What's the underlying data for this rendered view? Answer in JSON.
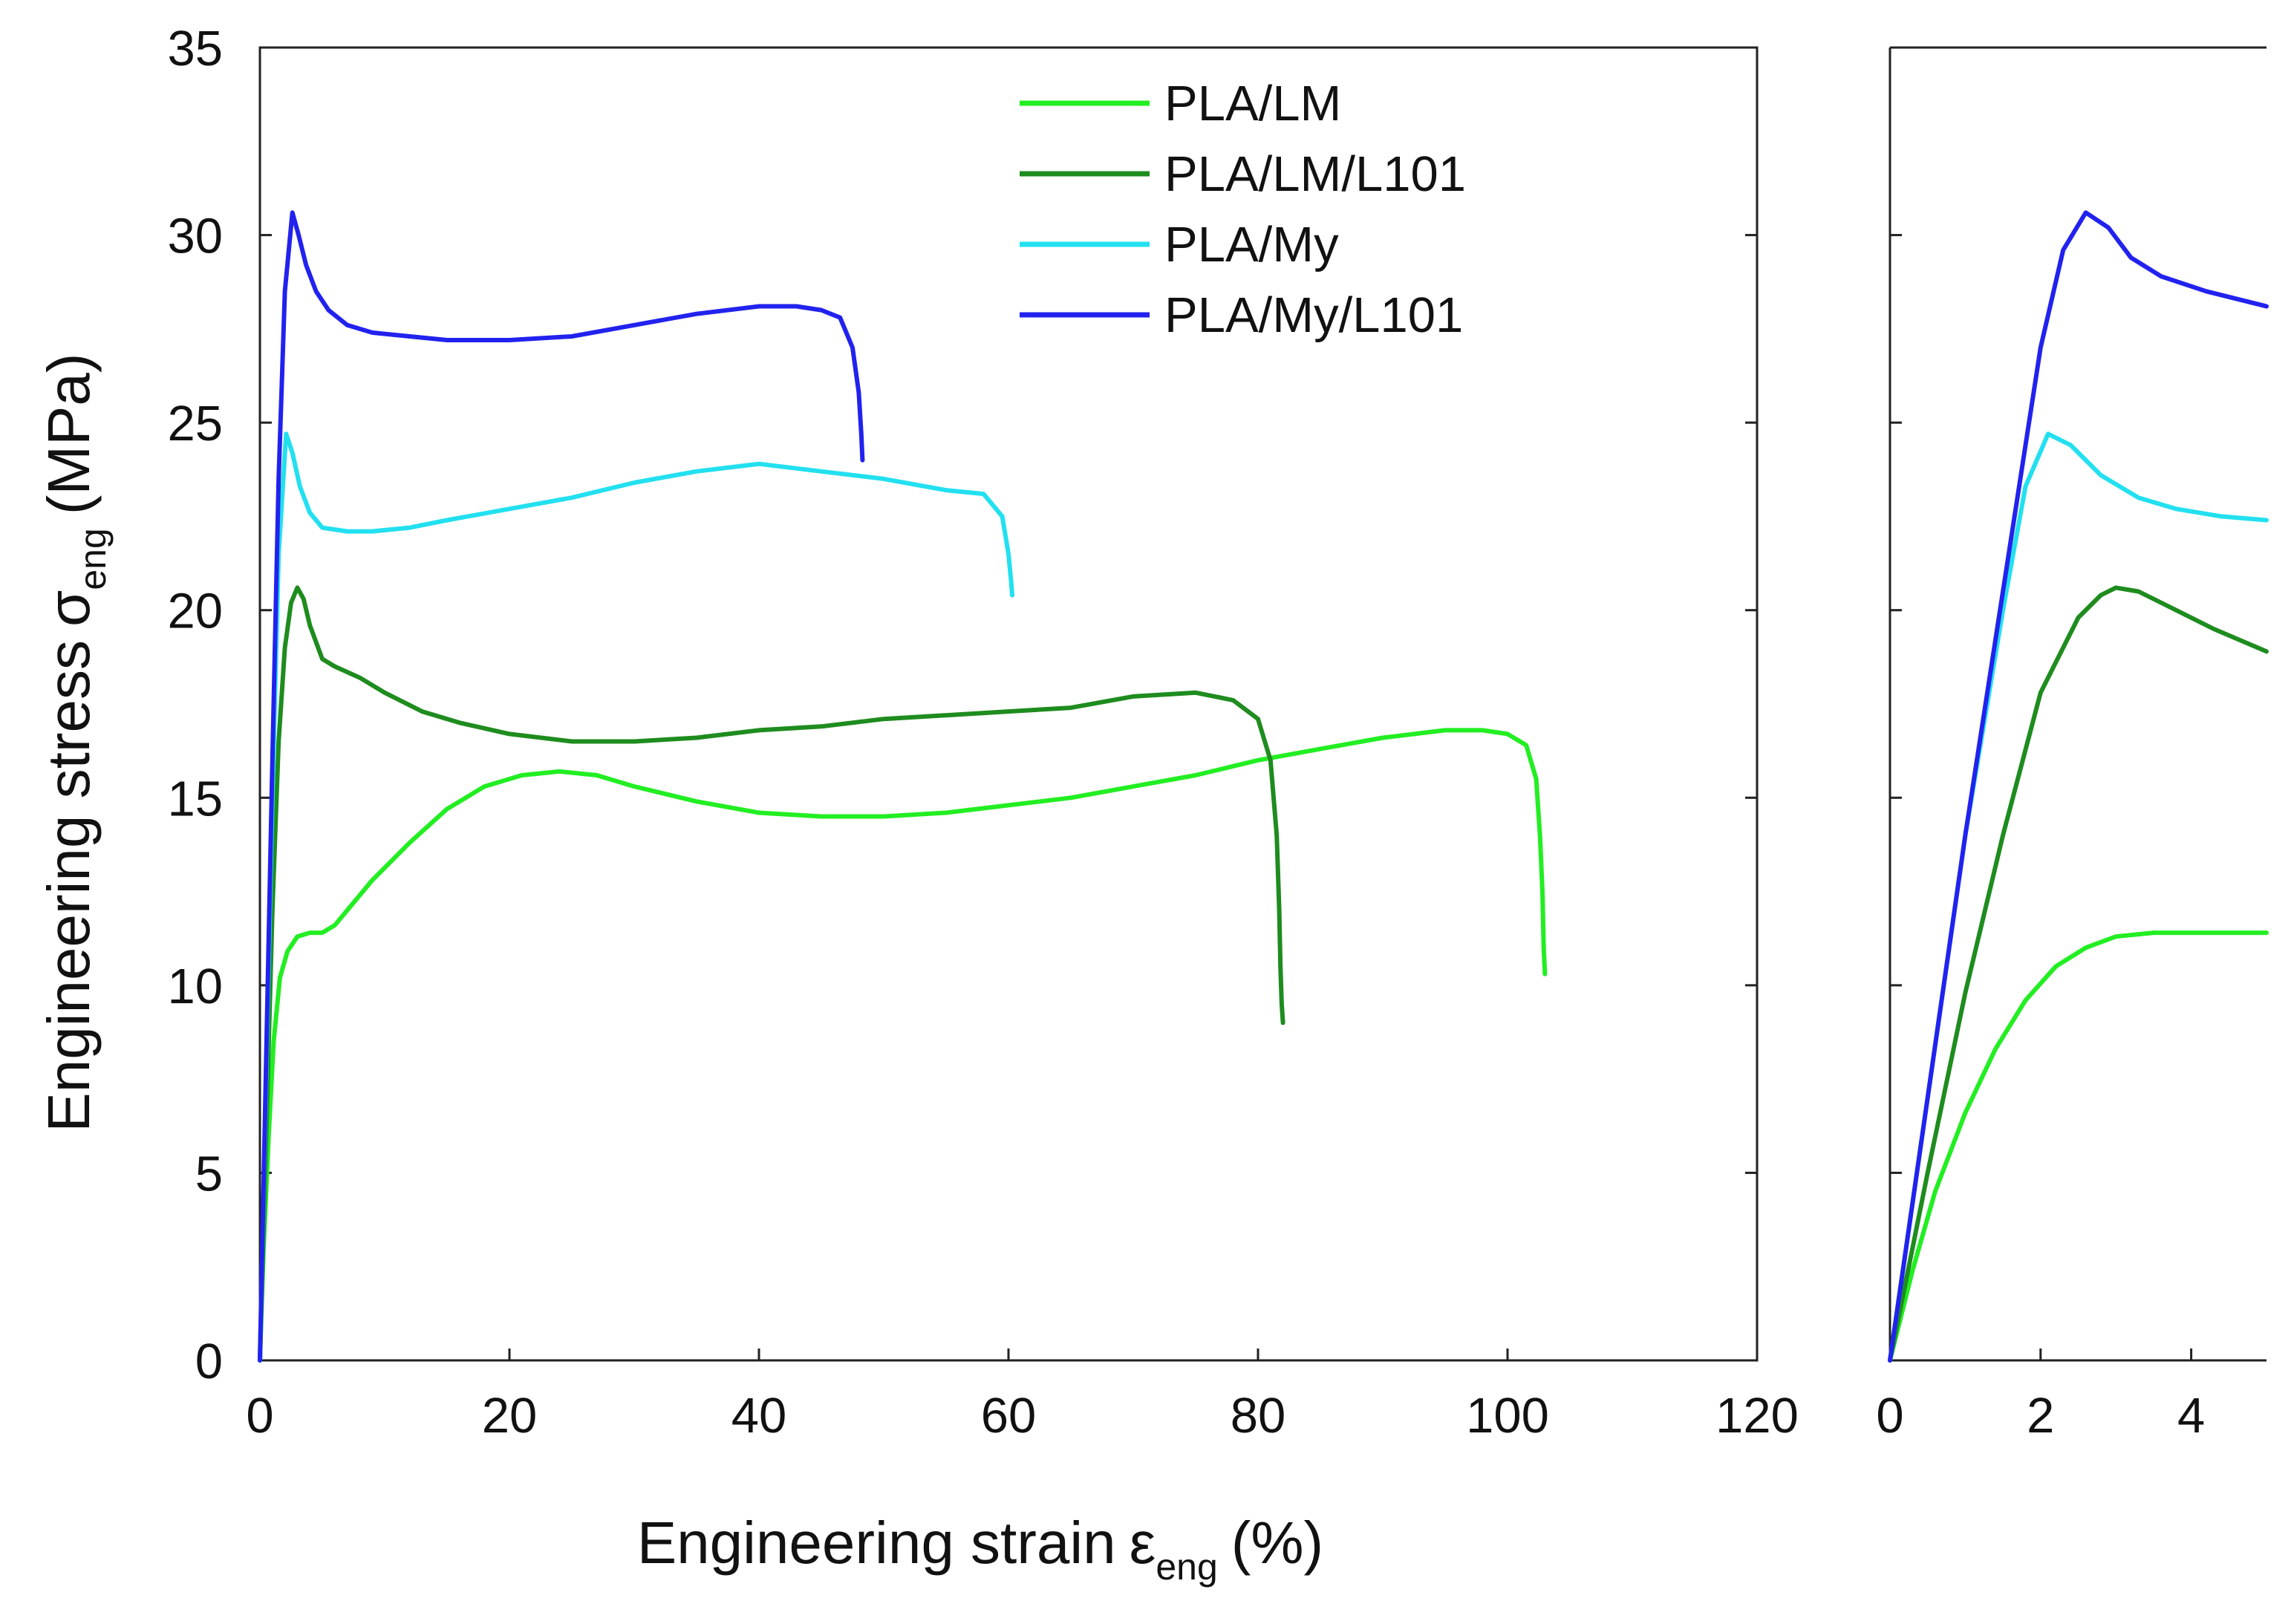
{
  "chart_data": [
    {
      "type": "line",
      "panel": "main",
      "title": "",
      "xlabel": "Engineering strain",
      "xlabel_symbol": "ε",
      "xlabel_sub": "eng",
      "xlabel_unit": "(%)",
      "ylabel": "Engineering stress",
      "ylabel_symbol": "σ",
      "ylabel_sub": "eng",
      "ylabel_unit": "(MPa)",
      "xlim": [
        0,
        120
      ],
      "ylim": [
        0,
        35
      ],
      "xticks": [
        0,
        20,
        40,
        60,
        80,
        100,
        120
      ],
      "yticks": [
        0,
        5,
        10,
        15,
        20,
        25,
        30,
        35
      ],
      "grid": false,
      "legend_position": "top-center",
      "series": [
        {
          "name": "PLA/LM",
          "color": "#22ee22",
          "x": [
            0,
            0.3,
            0.7,
            1.1,
            1.6,
            2.2,
            3.0,
            4.0,
            5.0,
            6.0,
            7.0,
            9.0,
            12.0,
            15.0,
            18.0,
            21.0,
            24.0,
            27.0,
            30.0,
            35.0,
            40.0,
            45.0,
            50.0,
            55.0,
            60.0,
            65.0,
            70.0,
            75.0,
            80.0,
            85.0,
            90.0,
            95.0,
            98.0,
            100.0,
            101.5,
            102.3,
            102.6,
            102.8,
            102.9,
            103.0
          ],
          "y": [
            0,
            3.0,
            6.0,
            8.5,
            10.2,
            10.9,
            11.3,
            11.4,
            11.4,
            11.6,
            12.0,
            12.8,
            13.8,
            14.7,
            15.3,
            15.6,
            15.7,
            15.6,
            15.3,
            14.9,
            14.6,
            14.5,
            14.5,
            14.6,
            14.8,
            15.0,
            15.3,
            15.6,
            16.0,
            16.3,
            16.6,
            16.8,
            16.8,
            16.7,
            16.4,
            15.5,
            14.0,
            12.5,
            11.0,
            10.3
          ]
        },
        {
          "name": "PLA/LM/L101",
          "color": "#1e8c1e",
          "x": [
            0,
            0.5,
            1.0,
            1.5,
            2.0,
            2.5,
            3.0,
            3.5,
            4.0,
            5.0,
            6.0,
            8.0,
            10.0,
            13.0,
            16.0,
            20.0,
            25.0,
            30.0,
            35.0,
            40.0,
            45.0,
            50.0,
            55.0,
            60.0,
            65.0,
            70.0,
            75.0,
            78.0,
            80.0,
            81.0,
            81.5,
            81.7,
            81.8,
            81.9,
            82.0
          ],
          "y": [
            0,
            6.0,
            12.0,
            16.5,
            19.0,
            20.2,
            20.6,
            20.3,
            19.6,
            18.7,
            18.5,
            18.2,
            17.8,
            17.3,
            17.0,
            16.7,
            16.5,
            16.5,
            16.6,
            16.8,
            16.9,
            17.1,
            17.2,
            17.3,
            17.4,
            17.7,
            17.8,
            17.6,
            17.1,
            16.0,
            14.0,
            12.0,
            10.5,
            9.5,
            9.0
          ]
        },
        {
          "name": "PLA/My",
          "color": "#22e0f0",
          "x": [
            0,
            0.5,
            1.0,
            1.5,
            2.1,
            2.6,
            3.2,
            4.0,
            5.0,
            7.0,
            9.0,
            12.0,
            15.0,
            20.0,
            25.0,
            30.0,
            35.0,
            40.0,
            45.0,
            50.0,
            55.0,
            58.0,
            59.5,
            60.0,
            60.2,
            60.3
          ],
          "y": [
            0,
            7.5,
            15.0,
            21.5,
            24.7,
            24.2,
            23.3,
            22.6,
            22.2,
            22.1,
            22.1,
            22.2,
            22.4,
            22.7,
            23.0,
            23.4,
            23.7,
            23.9,
            23.7,
            23.5,
            23.2,
            23.1,
            22.5,
            21.5,
            20.8,
            20.4
          ]
        },
        {
          "name": "PLA/My/L101",
          "color": "#2222ee",
          "x": [
            0,
            0.5,
            1.0,
            1.5,
            2.0,
            2.6,
            3.1,
            3.7,
            4.5,
            5.5,
            7.0,
            9.0,
            12.0,
            15.0,
            20.0,
            25.0,
            30.0,
            35.0,
            40.0,
            43.0,
            45.0,
            46.5,
            47.5,
            48.0,
            48.2,
            48.3
          ],
          "y": [
            0,
            8.0,
            16.0,
            23.5,
            28.5,
            30.6,
            30.0,
            29.2,
            28.5,
            28.0,
            27.6,
            27.4,
            27.3,
            27.2,
            27.2,
            27.3,
            27.6,
            27.9,
            28.1,
            28.1,
            28.0,
            27.8,
            27.0,
            25.8,
            24.7,
            24.0
          ]
        }
      ]
    },
    {
      "type": "line",
      "panel": "inset-zoom",
      "title": "",
      "xlim": [
        0,
        5
      ],
      "ylim": [
        0,
        35
      ],
      "xticks": [
        0,
        2,
        4
      ],
      "yticks": [
        0,
        5,
        10,
        15,
        20,
        25,
        30,
        35
      ],
      "grid": false,
      "series": [
        {
          "name": "PLA/LM",
          "color": "#22ee22",
          "x": [
            0,
            0.3,
            0.6,
            1.0,
            1.4,
            1.8,
            2.2,
            2.6,
            3.0,
            3.5,
            4.0,
            4.5,
            5.0
          ],
          "y": [
            0,
            2.4,
            4.5,
            6.6,
            8.3,
            9.6,
            10.5,
            11.0,
            11.3,
            11.4,
            11.4,
            11.4,
            11.4
          ]
        },
        {
          "name": "PLA/LM/L101",
          "color": "#1e8c1e",
          "x": [
            0,
            0.5,
            1.0,
            1.5,
            2.0,
            2.5,
            2.8,
            3.0,
            3.3,
            3.8,
            4.3,
            5.0
          ],
          "y": [
            0,
            5.0,
            9.8,
            14.0,
            17.8,
            19.8,
            20.4,
            20.6,
            20.5,
            20.0,
            19.5,
            18.9
          ]
        },
        {
          "name": "PLA/My",
          "color": "#22e0f0",
          "x": [
            0,
            0.5,
            1.0,
            1.5,
            1.8,
            2.1,
            2.4,
            2.8,
            3.3,
            3.8,
            4.4,
            5.0
          ],
          "y": [
            0,
            7.0,
            14.0,
            20.0,
            23.3,
            24.7,
            24.4,
            23.6,
            23.0,
            22.7,
            22.5,
            22.4
          ]
        },
        {
          "name": "PLA/My/L101",
          "color": "#2222ee",
          "x": [
            0,
            0.5,
            1.0,
            1.5,
            2.0,
            2.3,
            2.6,
            2.9,
            3.2,
            3.6,
            4.2,
            5.0
          ],
          "y": [
            0,
            7.0,
            14.0,
            20.5,
            27.0,
            29.6,
            30.6,
            30.2,
            29.4,
            28.9,
            28.5,
            28.1
          ]
        }
      ]
    }
  ]
}
